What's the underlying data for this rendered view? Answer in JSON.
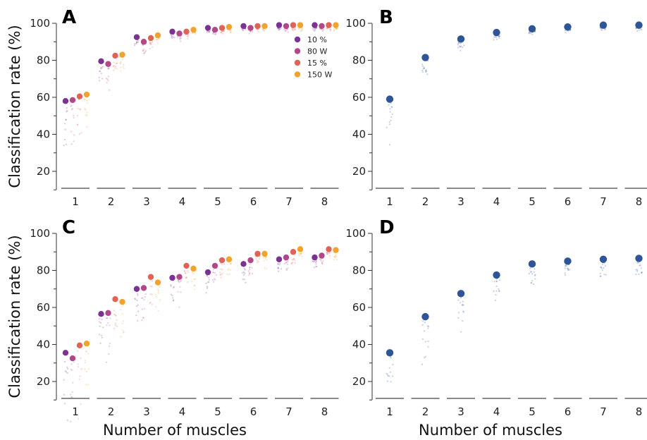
{
  "chart_data": [
    {
      "panel": "A",
      "type": "scatter",
      "categories": [
        "1",
        "2",
        "3",
        "4",
        "5",
        "6",
        "7",
        "8"
      ],
      "ylabel": "Classification rate (%)",
      "xlabel": "",
      "ylim": [
        10,
        100
      ],
      "yticks": [
        20,
        40,
        60,
        80,
        100
      ],
      "legend": {
        "placement": "top-right",
        "entries": [
          "10 %",
          "80 W",
          "15 %",
          "150 W"
        ]
      },
      "series": [
        {
          "name": "10 %",
          "color": "#7b3294",
          "values": [
            58,
            79.5,
            92.5,
            95.5,
            97.5,
            98.5,
            99,
            99
          ]
        },
        {
          "name": "80 W",
          "color": "#b2478a",
          "values": [
            58.5,
            78,
            90,
            94.5,
            96.5,
            97.5,
            98.5,
            98.5
          ]
        },
        {
          "name": "15 %",
          "color": "#e06356",
          "values": [
            60.5,
            82.5,
            92,
            95.5,
            97.5,
            98.5,
            99,
            99
          ]
        },
        {
          "name": "150 W",
          "color": "#f2a32e",
          "values": [
            61.5,
            83,
            93.5,
            96.5,
            98,
            98.5,
            99,
            99
          ]
        }
      ]
    },
    {
      "panel": "B",
      "type": "scatter",
      "categories": [
        "1",
        "2",
        "3",
        "4",
        "5",
        "6",
        "7",
        "8"
      ],
      "xlabel": "",
      "ylabel": "",
      "ylim": [
        10,
        100
      ],
      "yticks": [
        20,
        40,
        60,
        80,
        100
      ],
      "series": [
        {
          "color": "#2e5597",
          "values": [
            59,
            81.5,
            91.5,
            95,
            97,
            98,
            99,
            99
          ]
        }
      ]
    },
    {
      "panel": "C",
      "type": "scatter",
      "categories": [
        "1",
        "2",
        "3",
        "4",
        "5",
        "6",
        "7",
        "8"
      ],
      "ylabel": "Classification rate (%)",
      "xlabel": "Number of muscles",
      "ylim": [
        10,
        100
      ],
      "yticks": [
        20,
        40,
        60,
        80,
        100
      ],
      "series": [
        {
          "name": "10 %",
          "color": "#7b3294",
          "values": [
            35.5,
            56.5,
            70,
            76,
            79,
            83.5,
            86,
            87
          ]
        },
        {
          "name": "80 W",
          "color": "#b2478a",
          "values": [
            32.5,
            57,
            70.5,
            76.5,
            82.5,
            85.5,
            87,
            88
          ]
        },
        {
          "name": "15 %",
          "color": "#e06356",
          "values": [
            39.5,
            64.5,
            76.5,
            82.5,
            85.5,
            89,
            90,
            91.5
          ]
        },
        {
          "name": "150 W",
          "color": "#f2a32e",
          "values": [
            40.5,
            63,
            73.5,
            81,
            86,
            89,
            91.5,
            91
          ]
        }
      ]
    },
    {
      "panel": "D",
      "type": "scatter",
      "categories": [
        "1",
        "2",
        "3",
        "4",
        "5",
        "6",
        "7",
        "8"
      ],
      "xlabel": "Number of muscles",
      "ylabel": "",
      "ylim": [
        10,
        100
      ],
      "yticks": [
        20,
        40,
        60,
        80,
        100
      ],
      "series": [
        {
          "color": "#2e5597",
          "values": [
            35.5,
            55,
            67.5,
            77.5,
            83.5,
            85,
            86,
            86.5
          ]
        }
      ]
    }
  ]
}
